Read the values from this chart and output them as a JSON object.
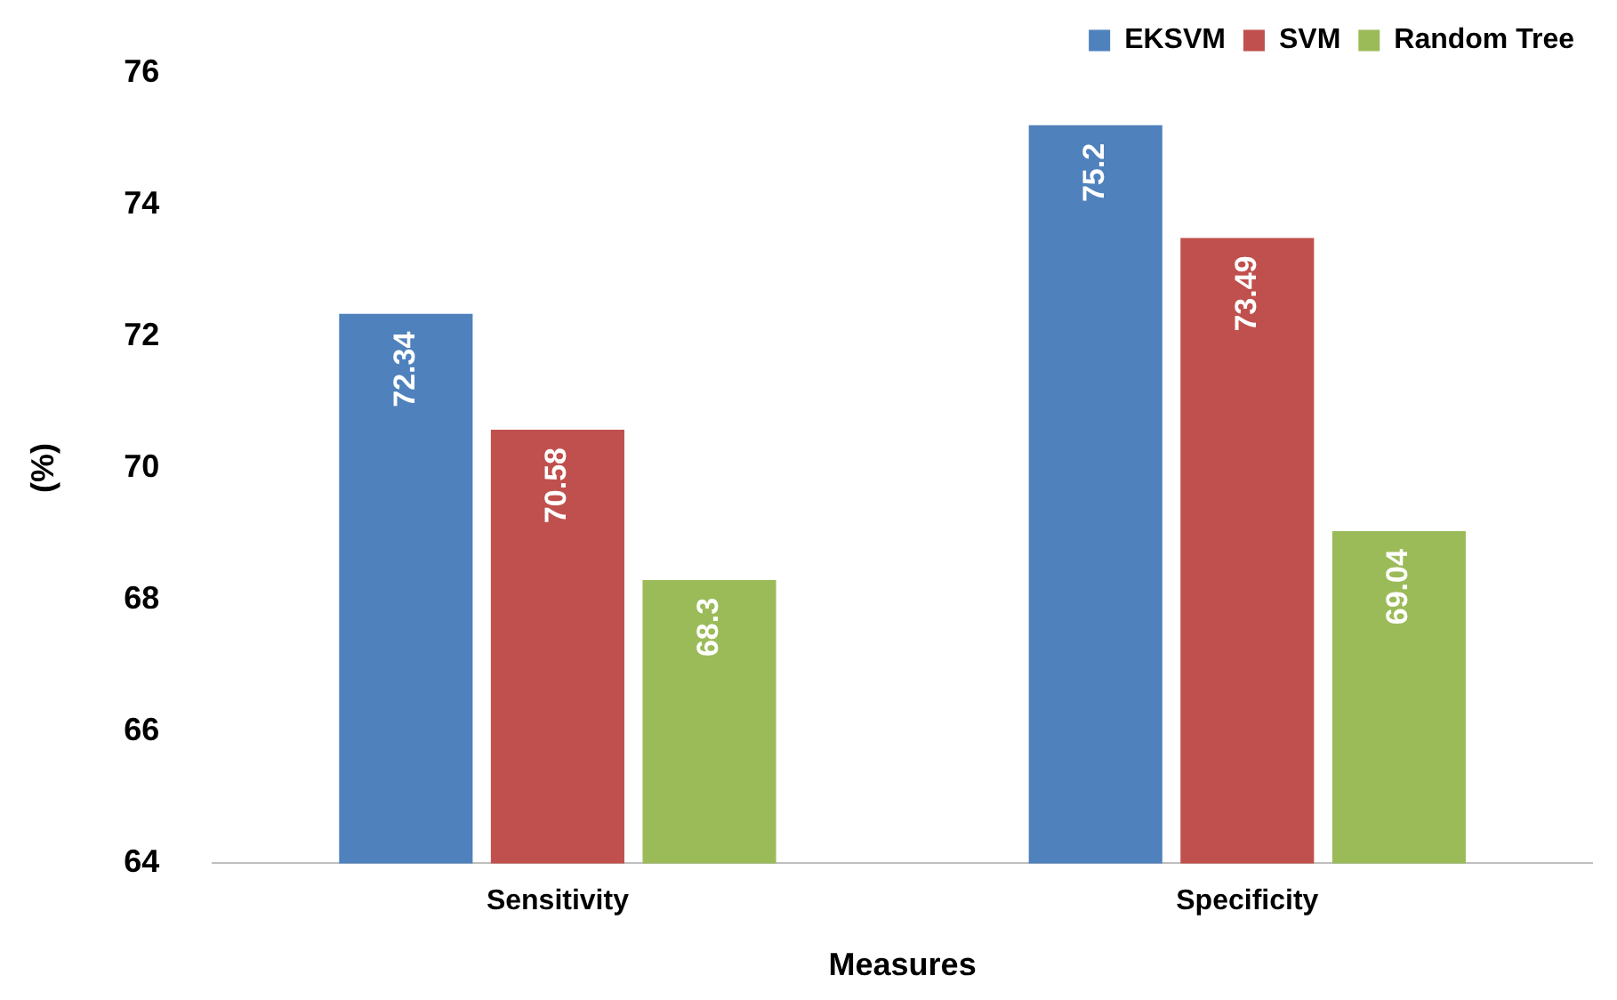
{
  "chart_data": {
    "type": "bar",
    "xlabel": "Measures",
    "ylabel": "(%)",
    "categories": [
      "Sensitivity",
      "Specificity"
    ],
    "series": [
      {
        "name": "EKSVM",
        "color": "#4f81bd",
        "values": [
          72.34,
          75.2
        ]
      },
      {
        "name": "SVM",
        "color": "#c0504d",
        "values": [
          70.58,
          73.49
        ]
      },
      {
        "name": "Random Tree",
        "color": "#9bbb59",
        "values": [
          68.3,
          69.04
        ]
      }
    ],
    "ylim": [
      64,
      76
    ],
    "yticks": [
      64,
      66,
      68,
      70,
      72,
      74,
      76
    ],
    "grid": false,
    "legend": "top right",
    "data_labels": true
  }
}
